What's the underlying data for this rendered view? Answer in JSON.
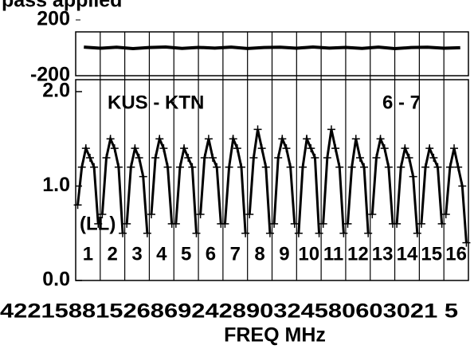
{
  "chart_data": {
    "type": "line",
    "title": "pass applied",
    "x_label": "FREQ MHz",
    "x_tick_text": "42215881526869242890324580603021 5",
    "annotations": {
      "baseline": "KUS - KTN",
      "antennas": "6 - 7",
      "polarization": "(LL)"
    },
    "subbands": [
      "1",
      "2",
      "3",
      "4",
      "5",
      "6",
      "7",
      "8",
      "9",
      "10",
      "11",
      "12",
      "13",
      "14",
      "15",
      "16"
    ],
    "phase": {
      "ylim": [
        -200,
        200
      ],
      "yticks": [
        200,
        -200
      ],
      "values": [
        5,
        -3,
        4,
        -6,
        2,
        6,
        -4,
        3,
        -2,
        5,
        -5,
        2,
        4,
        -3,
        6,
        -2,
        3,
        -4,
        5,
        -6,
        2,
        4,
        -3,
        1
      ]
    },
    "amplitude": {
      "ylim": [
        0,
        2
      ],
      "yticks": [
        {
          "value": 0,
          "label": "0.0"
        },
        {
          "value": 1,
          "label": "1.0"
        },
        {
          "value": 2,
          "label": "2.0"
        }
      ],
      "grid": true,
      "values": [
        [
          0.8,
          1.2,
          1.4,
          1.3,
          1.2,
          0.6
        ],
        [
          0.7,
          1.3,
          1.5,
          1.4,
          1.2,
          0.5
        ],
        [
          0.6,
          1.2,
          1.4,
          1.3,
          1.1,
          0.5
        ],
        [
          0.7,
          1.3,
          1.5,
          1.4,
          1.2,
          0.6
        ],
        [
          0.6,
          1.2,
          1.4,
          1.3,
          1.2,
          0.5
        ],
        [
          0.7,
          1.3,
          1.5,
          1.3,
          1.2,
          0.6
        ],
        [
          0.6,
          1.2,
          1.5,
          1.4,
          1.2,
          0.5
        ],
        [
          0.7,
          1.3,
          1.6,
          1.4,
          1.2,
          0.5
        ],
        [
          0.6,
          1.3,
          1.5,
          1.4,
          1.2,
          0.6
        ],
        [
          0.5,
          1.2,
          1.5,
          1.4,
          1.3,
          0.5
        ],
        [
          0.6,
          1.3,
          1.6,
          1.4,
          1.2,
          0.5
        ],
        [
          0.6,
          1.2,
          1.5,
          1.3,
          1.2,
          0.5
        ],
        [
          0.7,
          1.3,
          1.5,
          1.4,
          1.2,
          0.6
        ],
        [
          0.6,
          1.2,
          1.4,
          1.3,
          1.1,
          0.5
        ],
        [
          0.6,
          1.2,
          1.4,
          1.3,
          1.2,
          0.6
        ],
        [
          0.7,
          1.2,
          1.4,
          1.2,
          1.0,
          0.4
        ]
      ]
    }
  }
}
